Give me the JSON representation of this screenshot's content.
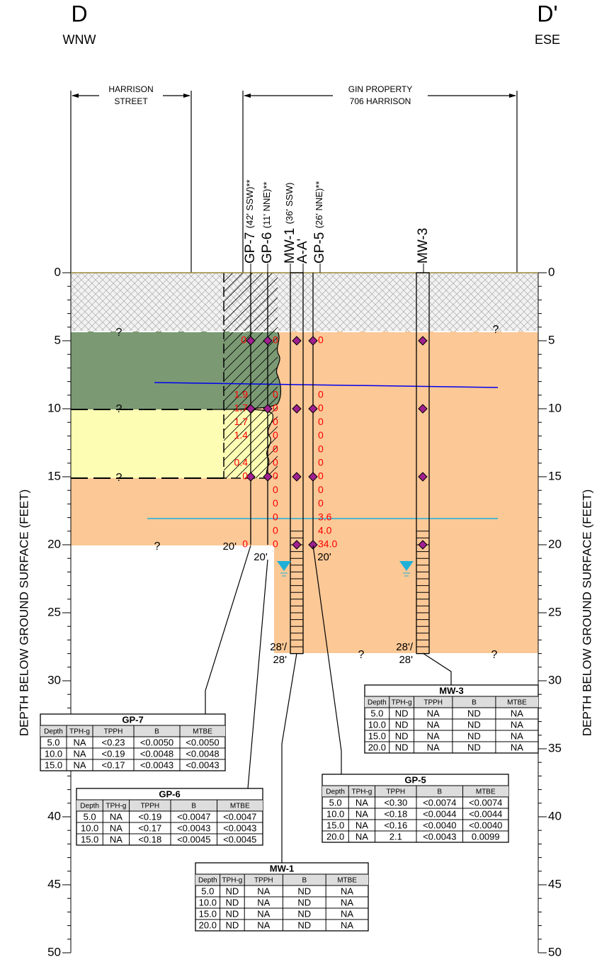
{
  "header": {
    "left_letter": "D",
    "left_direction": "WNW",
    "right_letter": "D'",
    "right_direction": "ESE",
    "left_zone": [
      "HARRISON",
      "STREET"
    ],
    "right_zone": [
      "GIN PROPERTY",
      "706 HARRISON"
    ]
  },
  "depth_axis": {
    "title": "DEPTH BELOW GROUND SURFACE (FEET)",
    "ticks": [
      0,
      5,
      10,
      15,
      20,
      25,
      30,
      35,
      40,
      45,
      50
    ]
  },
  "borings": [
    {
      "name": "GP-7",
      "note": "(42' SSW)**",
      "readings": [
        "0",
        "1.9",
        "1.7",
        "1.7",
        "1.4",
        "0.4",
        "0",
        "0"
      ],
      "total_depth": [
        "20'"
      ]
    },
    {
      "name": "GP-6",
      "note": "(11' NNE)**",
      "readings": [
        "0",
        "0",
        "0",
        "0",
        "0",
        "0",
        "0",
        "0",
        "0",
        "0",
        "0",
        "0",
        "0"
      ],
      "total_depth": [
        "20'"
      ]
    },
    {
      "name": "MW-1",
      "note": "(36' SSW)",
      "readings": [],
      "total_depth": [
        "28'/",
        "28'"
      ]
    },
    {
      "name": "A-A'",
      "note": "",
      "readings": [],
      "total_depth": []
    },
    {
      "name": "GP-5",
      "note": "(26' NNE)**",
      "readings": [
        "0",
        "0",
        "0",
        "0",
        "0",
        "0",
        "0",
        "0",
        "0",
        "0",
        "3.6",
        "4.0",
        "34.0"
      ],
      "total_depth": [
        "20'"
      ]
    },
    {
      "name": "MW-3",
      "note": "",
      "readings": [],
      "total_depth": [
        "28'/",
        "28'"
      ]
    }
  ],
  "question_marks": [
    "?",
    "?",
    "?",
    "?",
    "?",
    "?",
    "?"
  ],
  "tables": [
    {
      "title": "GP-7",
      "columns": [
        "Depth",
        "TPH-g",
        "TPPH",
        "B",
        "MTBE"
      ],
      "rows": [
        [
          "5.0",
          "NA",
          "<0.23",
          "<0.0050",
          "<0.0050"
        ],
        [
          "10.0",
          "NA",
          "<0.19",
          "<0.0048",
          "<0.0048"
        ],
        [
          "15.0",
          "NA",
          "<0.17",
          "<0.0043",
          "<0.0043"
        ]
      ]
    },
    {
      "title": "GP-6",
      "columns": [
        "Depth",
        "TPH-g",
        "TPPH",
        "B",
        "MTBE"
      ],
      "rows": [
        [
          "5.0",
          "NA",
          "<0.19",
          "<0.0047",
          "<0.0047"
        ],
        [
          "10.0",
          "NA",
          "<0.17",
          "<0.0043",
          "<0.0043"
        ],
        [
          "15.0",
          "NA",
          "<0.18",
          "<0.0045",
          "<0.0045"
        ]
      ]
    },
    {
      "title": "MW-1",
      "columns": [
        "Depth",
        "TPH-g",
        "TPPH",
        "B",
        "MTBE"
      ],
      "rows": [
        [
          "5.0",
          "ND",
          "NA",
          "ND",
          "NA"
        ],
        [
          "10.0",
          "ND",
          "NA",
          "ND",
          "NA"
        ],
        [
          "15.0",
          "ND",
          "NA",
          "ND",
          "NA"
        ],
        [
          "20.0",
          "ND",
          "NA",
          "ND",
          "NA"
        ]
      ]
    },
    {
      "title": "GP-5",
      "columns": [
        "Depth",
        "TPH-g",
        "TPPH",
        "B",
        "MTBE"
      ],
      "rows": [
        [
          "5.0",
          "NA",
          "<0.30",
          "<0.0074",
          "<0.0074"
        ],
        [
          "10.0",
          "NA",
          "<0.18",
          "<0.0044",
          "<0.0044"
        ],
        [
          "15.0",
          "NA",
          "<0.16",
          "<0.0040",
          "<0.0040"
        ],
        [
          "20.0",
          "NA",
          "2.1",
          "<0.0043",
          "0.0099"
        ]
      ]
    },
    {
      "title": "MW-3",
      "columns": [
        "Depth",
        "TPH-g",
        "TPPH",
        "B",
        "MTBE"
      ],
      "rows": [
        [
          "5.0",
          "ND",
          "NA",
          "ND",
          "NA"
        ],
        [
          "10.0",
          "ND",
          "NA",
          "ND",
          "NA"
        ],
        [
          "15.0",
          "ND",
          "NA",
          "ND",
          "NA"
        ],
        [
          "20.0",
          "ND",
          "NA",
          "ND",
          "NA"
        ]
      ]
    }
  ]
}
